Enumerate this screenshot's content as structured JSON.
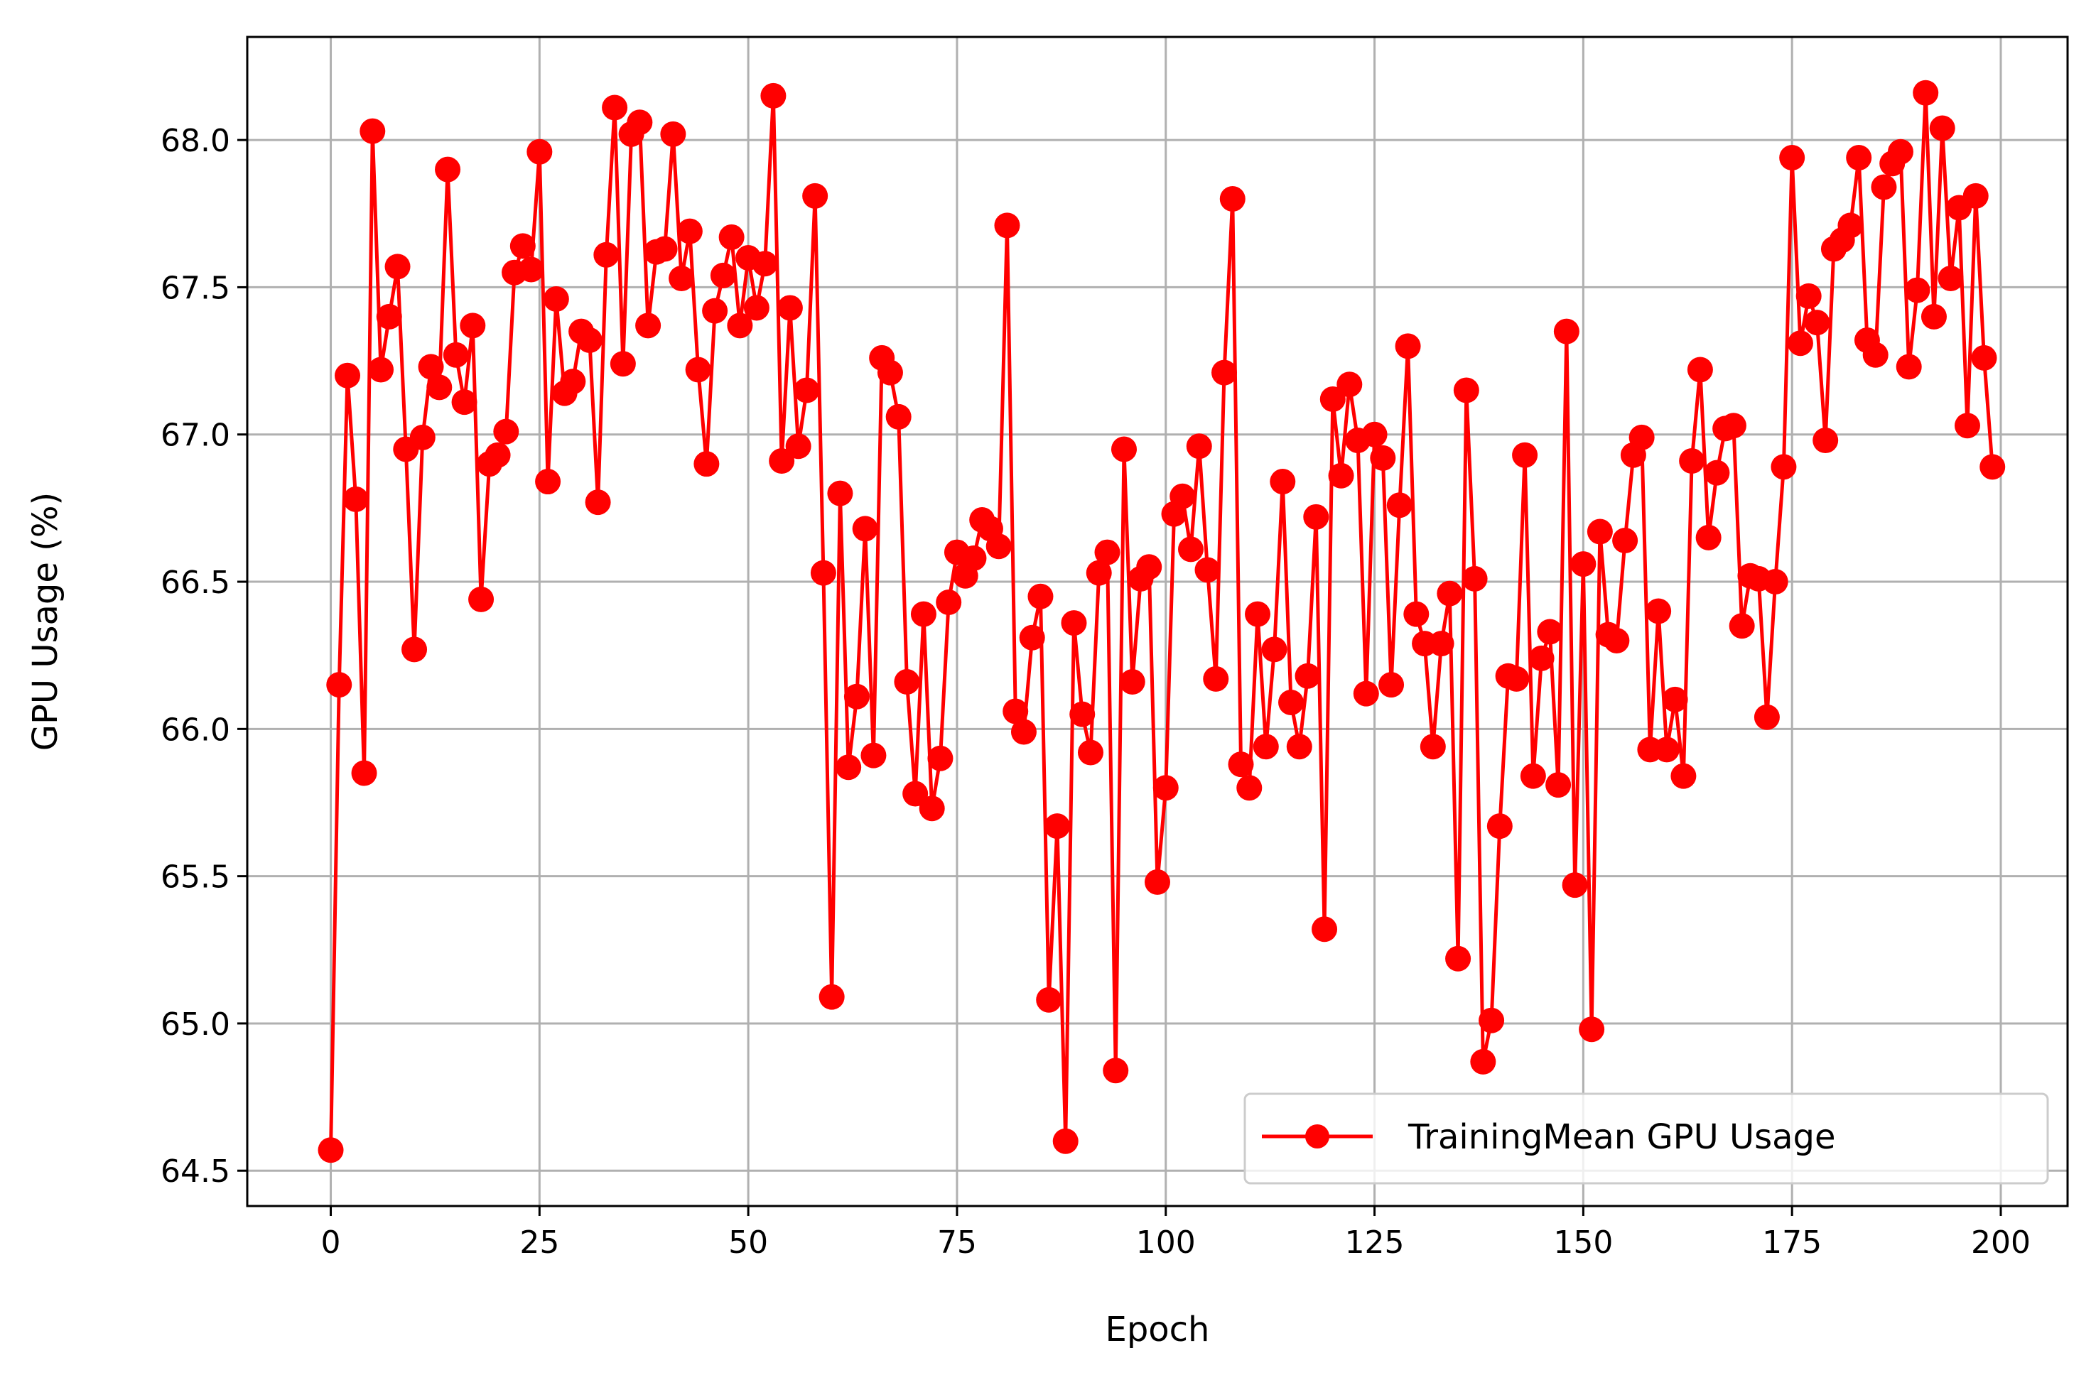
{
  "chart_data": {
    "type": "line",
    "xlabel": "Epoch",
    "ylabel": "GPU Usage (%)",
    "xlim": [
      -10,
      208
    ],
    "ylim": [
      64.38,
      68.35
    ],
    "x_ticks": [
      0,
      25,
      50,
      75,
      100,
      125,
      150,
      175,
      200
    ],
    "y_ticks": [
      64.5,
      65.0,
      65.5,
      66.0,
      66.5,
      67.0,
      67.5,
      68.0
    ],
    "grid": true,
    "legend_position": "lower right",
    "series": [
      {
        "name": "TrainingMean GPU Usage",
        "color": "#ff0000",
        "marker": "circle",
        "x_start": 0,
        "x_step": 1,
        "values": [
          64.57,
          66.15,
          67.2,
          66.78,
          65.85,
          68.03,
          67.22,
          67.4,
          67.57,
          66.95,
          66.27,
          66.99,
          67.23,
          67.16,
          67.9,
          67.27,
          67.11,
          67.37,
          66.44,
          66.9,
          66.93,
          67.01,
          67.55,
          67.64,
          67.56,
          67.96,
          66.84,
          67.46,
          67.14,
          67.18,
          67.35,
          67.32,
          66.77,
          67.61,
          68.11,
          67.24,
          68.02,
          68.06,
          67.37,
          67.62,
          67.63,
          68.02,
          67.53,
          67.69,
          67.22,
          66.9,
          67.42,
          67.54,
          67.67,
          67.37,
          67.6,
          67.43,
          67.58,
          68.15,
          66.91,
          67.43,
          66.96,
          67.15,
          67.81,
          66.53,
          65.09,
          66.8,
          65.87,
          66.11,
          66.68,
          65.91,
          67.26,
          67.21,
          67.06,
          66.16,
          65.78,
          66.39,
          65.73,
          65.9,
          66.43,
          66.6,
          66.52,
          66.58,
          66.71,
          66.68,
          66.62,
          67.71,
          66.06,
          65.99,
          66.31,
          66.45,
          65.08,
          65.67,
          64.6,
          66.36,
          66.05,
          65.92,
          66.53,
          66.6,
          64.84,
          66.95,
          66.16,
          66.51,
          66.55,
          65.48,
          65.8,
          66.73,
          66.79,
          66.61,
          66.96,
          66.54,
          66.17,
          67.21,
          67.8,
          65.88,
          65.8,
          66.39,
          65.94,
          66.27,
          66.84,
          66.09,
          65.94,
          66.18,
          66.72,
          65.32,
          67.12,
          66.86,
          67.17,
          66.98,
          66.12,
          67.0,
          66.92,
          66.15,
          66.76,
          67.3,
          66.39,
          66.29,
          65.94,
          66.29,
          66.46,
          65.22,
          67.15,
          66.51,
          64.87,
          65.01,
          65.67,
          66.18,
          66.17,
          66.93,
          65.84,
          66.24,
          66.33,
          65.81,
          67.35,
          65.47,
          66.56,
          64.98,
          66.67,
          66.32,
          66.3,
          66.64,
          66.93,
          66.99,
          65.93,
          66.4,
          65.93,
          66.1,
          65.84,
          66.91,
          67.22,
          66.65,
          66.87,
          67.02,
          67.03,
          66.35,
          66.52,
          66.51,
          66.04,
          66.5,
          66.89,
          67.94,
          67.31,
          67.47,
          67.38,
          66.98,
          67.63,
          67.66,
          67.71,
          67.94,
          67.32,
          67.27,
          67.84,
          67.92,
          67.96,
          67.23,
          67.49,
          68.16,
          67.4,
          68.04,
          67.53,
          67.77,
          67.03,
          67.81,
          67.26,
          66.89
        ]
      }
    ]
  }
}
